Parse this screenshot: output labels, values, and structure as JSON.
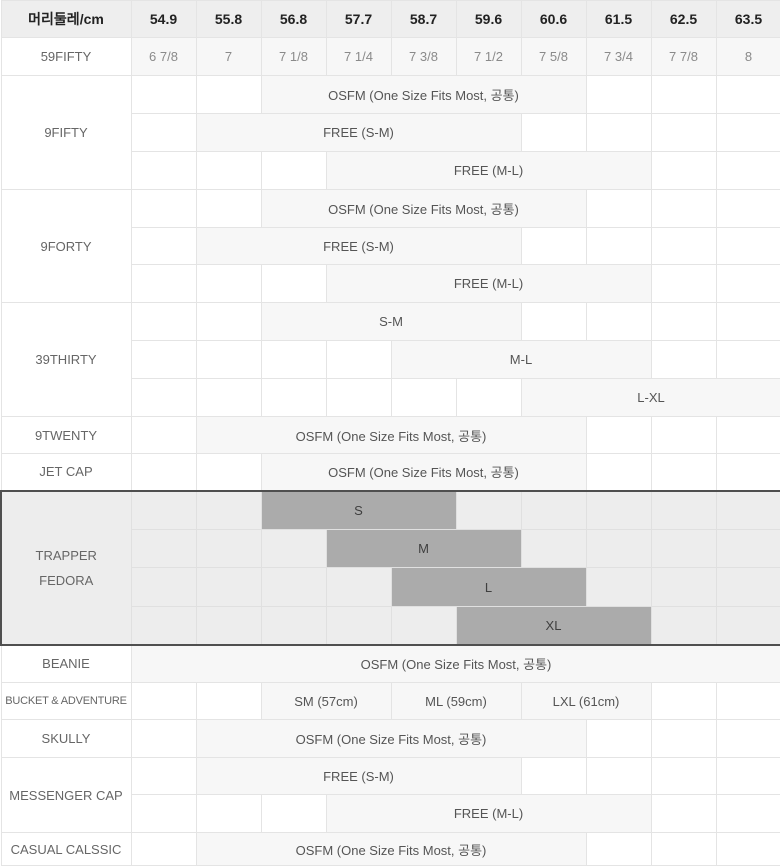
{
  "header": {
    "label": "머리둘레/cm",
    "columns": [
      "54.9",
      "55.8",
      "56.8",
      "57.7",
      "58.7",
      "59.6",
      "60.6",
      "61.5",
      "62.5",
      "63.5"
    ]
  },
  "rows": {
    "fifty59": {
      "label": "59FIFTY",
      "sizes": [
        "6 7/8",
        "7",
        "7 1/8",
        "7 1/4",
        "7 3/8",
        "7 1/2",
        "7 5/8",
        "7 3/4",
        "7 7/8",
        "8"
      ]
    },
    "nine_fifty": {
      "label": "9FIFTY",
      "osfm": "OSFM (One Size Fits Most, 공통)",
      "free_sm": "FREE (S-M)",
      "free_ml": "FREE (M-L)"
    },
    "nine_forty": {
      "label": "9FORTY",
      "osfm": "OSFM (One Size Fits Most, 공통)",
      "free_sm": "FREE (S-M)",
      "free_ml": "FREE (M-L)"
    },
    "thirty_nine_thirty": {
      "label": "39THIRTY",
      "sm": "S-M",
      "ml": "M-L",
      "lxl": "L-XL"
    },
    "nine_twenty": {
      "label": "9TWENTY",
      "osfm": "OSFM (One Size Fits Most, 공통)"
    },
    "jet_cap": {
      "label": "JET CAP",
      "osfm": "OSFM (One Size Fits Most, 공통)"
    },
    "trapper_fedora": {
      "label_line1": "TRAPPER",
      "label_line2": "FEDORA",
      "s": "S",
      "m": "M",
      "l": "L",
      "xl": "XL"
    },
    "beanie": {
      "label": "BEANIE",
      "osfm": "OSFM (One Size Fits Most, 공통)"
    },
    "bucket_adventure": {
      "label": "BUCKET & ADVENTURE",
      "sm": "SM (57cm)",
      "ml": "ML (59cm)",
      "lxl": "LXL (61cm)"
    },
    "skully": {
      "label": "SKULLY",
      "osfm": "OSFM (One Size Fits Most, 공통)"
    },
    "messenger_cap": {
      "label": "MESSENGER CAP",
      "free_sm": "FREE (S-M)",
      "free_ml": "FREE (M-L)"
    },
    "casual_classic": {
      "label": "CASUAL CALSSIC",
      "osfm": "OSFM (One Size Fits Most, 공통)"
    }
  },
  "colors": {
    "header_bg": "#eeeeee",
    "filled_cell_bg": "#f7f7f7",
    "highlight_bg": "#ababab",
    "trapper_section_bg": "#ededed",
    "section_border": "#4f4f4f",
    "grid_border": "#e4e4e4"
  }
}
